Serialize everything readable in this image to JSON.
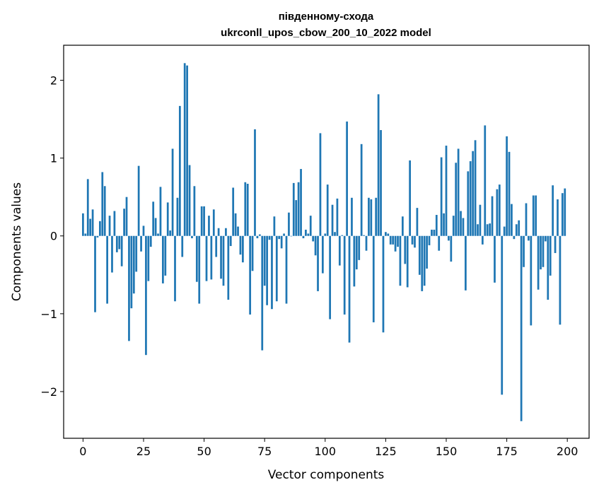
{
  "chart_data": {
    "type": "bar",
    "title_line1": "південному-схода",
    "title_line2": "ukrconll_upos_cbow_200_10_2022 model",
    "xlabel": "Vector components",
    "ylabel": "Components values",
    "xlim": [
      -8,
      209
    ],
    "ylim": [
      -2.6,
      2.45
    ],
    "xticks": [
      0,
      25,
      50,
      75,
      100,
      125,
      150,
      175,
      200
    ],
    "xtick_labels": [
      "0",
      "25",
      "50",
      "75",
      "100",
      "125",
      "150",
      "175",
      "200"
    ],
    "yticks": [
      -2,
      -1,
      0,
      1,
      2
    ],
    "ytick_labels": [
      "−2",
      "−1",
      "0",
      "1",
      "2"
    ],
    "bar_color": "#1f77b4",
    "grid": false,
    "legend": "none",
    "values": [
      0.29,
      0.03,
      0.73,
      0.22,
      0.34,
      -0.98,
      -0.02,
      0.19,
      0.82,
      0.64,
      -0.87,
      0.26,
      -0.47,
      0.32,
      -0.21,
      -0.17,
      -0.39,
      0.35,
      0.5,
      -1.35,
      -0.93,
      -0.74,
      -0.46,
      0.9,
      -0.2,
      0.13,
      -1.53,
      -0.58,
      -0.14,
      0.44,
      0.23,
      0.03,
      0.63,
      -0.61,
      -0.51,
      0.43,
      0.07,
      1.12,
      -0.84,
      0.49,
      1.67,
      -0.27,
      2.22,
      2.19,
      0.91,
      -0.03,
      0.64,
      -0.59,
      -0.87,
      0.38,
      0.38,
      -0.58,
      0.26,
      -0.56,
      0.34,
      -0.27,
      0.1,
      -0.55,
      -0.64,
      0.1,
      -0.82,
      -0.13,
      0.62,
      0.29,
      0.12,
      -0.24,
      -0.34,
      0.69,
      0.67,
      -1.01,
      -0.45,
      1.37,
      -0.03,
      0.02,
      -1.47,
      -0.64,
      -0.89,
      -0.05,
      -0.94,
      0.25,
      -0.84,
      -0.04,
      -0.16,
      0.03,
      -0.87,
      0.3,
      0.0,
      0.68,
      0.46,
      0.69,
      0.86,
      -0.03,
      0.08,
      0.03,
      0.26,
      -0.07,
      -0.25,
      -0.71,
      1.32,
      -0.48,
      0.03,
      0.66,
      -1.07,
      0.4,
      0.05,
      0.48,
      -0.38,
      0.01,
      -1.01,
      1.47,
      -1.37,
      0.49,
      -0.65,
      -0.43,
      -0.31,
      1.18,
      0.01,
      -0.19,
      0.49,
      0.47,
      -1.11,
      0.49,
      1.82,
      1.36,
      -1.24,
      0.05,
      0.03,
      -0.11,
      -0.11,
      -0.2,
      -0.14,
      -0.64,
      0.25,
      -0.36,
      -0.66,
      0.97,
      -0.11,
      -0.15,
      0.36,
      -0.5,
      -0.71,
      -0.64,
      -0.42,
      -0.12,
      0.08,
      0.08,
      0.27,
      -0.19,
      1.01,
      0.29,
      1.16,
      -0.06,
      -0.33,
      0.26,
      0.94,
      1.12,
      0.32,
      0.23,
      -0.7,
      0.83,
      0.96,
      1.09,
      1.23,
      0.15,
      0.4,
      -0.11,
      1.42,
      0.15,
      0.16,
      0.51,
      -0.6,
      0.6,
      0.66,
      -2.04,
      0.12,
      1.28,
      1.08,
      0.41,
      -0.04,
      0.15,
      0.2,
      -2.38,
      -0.4,
      0.42,
      -0.06,
      -1.15,
      0.52,
      0.52,
      -0.69,
      -0.43,
      -0.4,
      -0.07,
      -0.82,
      -0.51,
      0.65,
      -0.22,
      0.47,
      -1.14,
      0.55,
      0.61
    ]
  }
}
